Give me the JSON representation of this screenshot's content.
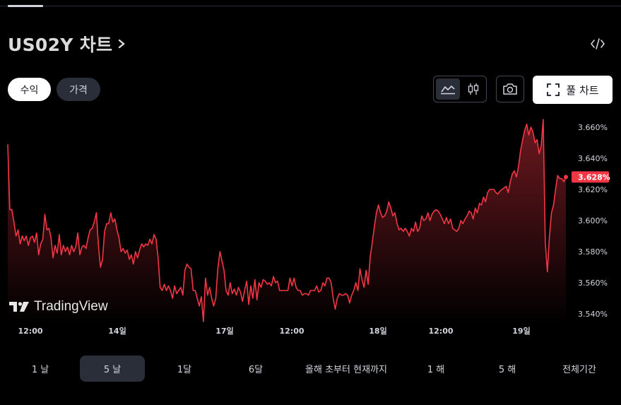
{
  "header": {
    "title": "US02Y 차트"
  },
  "toggle": {
    "yield_label": "수익",
    "price_label": "가격"
  },
  "toolbar": {
    "full_chart_label": "풀 차트"
  },
  "logo": {
    "text": "TradingView"
  },
  "periods": [
    "1 날",
    "5 날",
    "1달",
    "6달",
    "올해 초부터 현재까지",
    "1 해",
    "5 해",
    "전체기간"
  ],
  "active_period": 1,
  "colors": {
    "line": "#f23645",
    "price_tag": "#f23645",
    "background": "#000000"
  },
  "chart_data": {
    "type": "area",
    "series": [
      {
        "values": [
          3.649,
          3.607,
          3.607,
          3.599,
          3.59,
          3.594,
          3.585,
          3.59,
          3.587,
          3.59,
          3.584,
          3.589,
          3.59,
          3.586,
          3.592,
          3.578,
          3.585,
          3.588,
          3.604,
          3.594,
          3.595,
          3.589,
          3.576,
          3.584,
          3.579,
          3.591,
          3.578,
          3.584,
          3.58,
          3.583,
          3.578,
          3.584,
          3.58,
          3.583,
          3.592,
          3.578,
          3.583,
          3.584,
          3.582,
          3.589,
          3.594,
          3.595,
          3.599,
          3.605,
          3.584,
          3.57,
          3.575,
          3.593,
          3.598,
          3.598,
          3.605,
          3.599,
          3.601,
          3.594,
          3.589,
          3.58,
          3.582,
          3.579,
          3.581,
          3.575,
          3.578,
          3.572,
          3.58,
          3.576,
          3.581,
          3.585,
          3.583,
          3.585,
          3.584,
          3.588,
          3.585,
          3.591,
          3.588,
          3.576,
          3.557,
          3.555,
          3.559,
          3.555,
          3.558,
          3.555,
          3.55,
          3.558,
          3.553,
          3.555,
          3.557,
          3.552,
          3.568,
          3.572,
          3.57,
          3.569,
          3.555,
          3.555,
          3.55,
          3.545,
          3.551,
          3.535,
          3.563,
          3.552,
          3.557,
          3.55,
          3.545,
          3.55,
          3.569,
          3.58,
          3.574,
          3.568,
          3.555,
          3.552,
          3.56,
          3.553,
          3.556,
          3.552,
          3.557,
          3.554,
          3.548,
          3.555,
          3.561,
          3.546,
          3.558,
          3.55,
          3.562,
          3.549,
          3.56,
          3.557,
          3.562,
          3.561,
          3.559,
          3.56,
          3.558,
          3.564,
          3.56,
          3.561,
          3.555,
          3.555,
          3.555,
          3.555,
          3.555,
          3.563,
          3.558,
          3.563,
          3.557,
          3.555,
          3.555,
          3.552,
          3.553,
          3.553,
          3.552,
          3.555,
          3.555,
          3.555,
          3.558,
          3.554,
          3.555,
          3.56,
          3.558,
          3.563,
          3.563,
          3.56,
          3.55,
          3.543,
          3.55,
          3.553,
          3.552,
          3.552,
          3.553,
          3.552,
          3.547,
          3.552,
          3.555,
          3.56,
          3.555,
          3.569,
          3.562,
          3.557,
          3.568,
          3.559,
          3.577,
          3.586,
          3.596,
          3.605,
          3.61,
          3.605,
          3.602,
          3.603,
          3.606,
          3.612,
          3.608,
          3.603,
          3.605,
          3.598,
          3.594,
          3.595,
          3.593,
          3.595,
          3.593,
          3.59,
          3.595,
          3.593,
          3.599,
          3.593,
          3.595,
          3.603,
          3.6,
          3.601,
          3.605,
          3.6,
          3.604,
          3.606,
          3.607,
          3.606,
          3.604,
          3.601,
          3.598,
          3.602,
          3.598,
          3.601,
          3.595,
          3.594,
          3.593,
          3.595,
          3.6,
          3.598,
          3.601,
          3.603,
          3.606,
          3.605,
          3.601,
          3.608,
          3.605,
          3.611,
          3.61,
          3.615,
          3.612,
          3.618,
          3.62,
          3.62,
          3.62,
          3.618,
          3.617,
          3.619,
          3.62,
          3.621,
          3.622,
          3.618,
          3.625,
          3.63,
          3.632,
          3.628,
          3.635,
          3.645,
          3.652,
          3.658,
          3.662,
          3.655,
          3.66,
          3.657,
          3.65,
          3.652,
          3.643,
          3.648,
          3.665,
          3.586,
          3.567,
          3.59,
          3.605,
          3.61,
          3.62,
          3.629,
          3.627,
          3.627,
          3.625,
          3.628
        ],
        "end_value": "3.628%"
      }
    ],
    "x_labels": [
      "12:00",
      "14일",
      "17일",
      "12:00",
      "18일",
      "12:00",
      "19일"
    ],
    "y_ticks": [
      "3.660%",
      "3.640%",
      "3.620%",
      "3.600%",
      "3.580%",
      "3.560%",
      "3.540%"
    ],
    "ylim": [
      3.53,
      3.67
    ],
    "grid": false,
    "legend": "none"
  }
}
